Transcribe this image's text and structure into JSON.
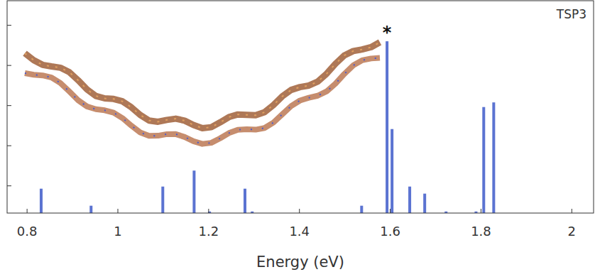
{
  "chart_data": {
    "type": "stem",
    "title": "TSP3",
    "x_label": "Energy (eV)",
    "x": [
      0.831,
      0.941,
      1.099,
      1.168,
      1.202,
      1.28,
      1.296,
      1.537,
      1.593,
      1.604,
      1.643,
      1.676,
      1.723,
      1.789,
      1.806,
      1.828
    ],
    "values": [
      8.5e-05,
      3.2e-05,
      9.6e-05,
      0.00024,
      2.3e-05,
      8.5e-05,
      2.3e-05,
      3.2e-05,
      0.4,
      0.0026,
      9.6e-05,
      6.4e-05,
      2.3e-05,
      2.3e-05,
      0.0092,
      0.012
    ],
    "color": "#5b73d1",
    "xlim": [
      0.756,
      2.048
    ],
    "xticks": [
      0.8,
      1.0,
      1.2,
      1.4,
      1.6,
      1.8,
      2.0
    ],
    "ylim": [
      2.1e-05,
      4.1
    ],
    "yticks": [
      0.0001,
      0.001,
      0.01,
      0.1,
      1
    ],
    "log": "y",
    "tick_labels": "x",
    "annotations": [
      {
        "text": "*",
        "x": 1.593,
        "y": 0.4
      }
    ]
  }
}
